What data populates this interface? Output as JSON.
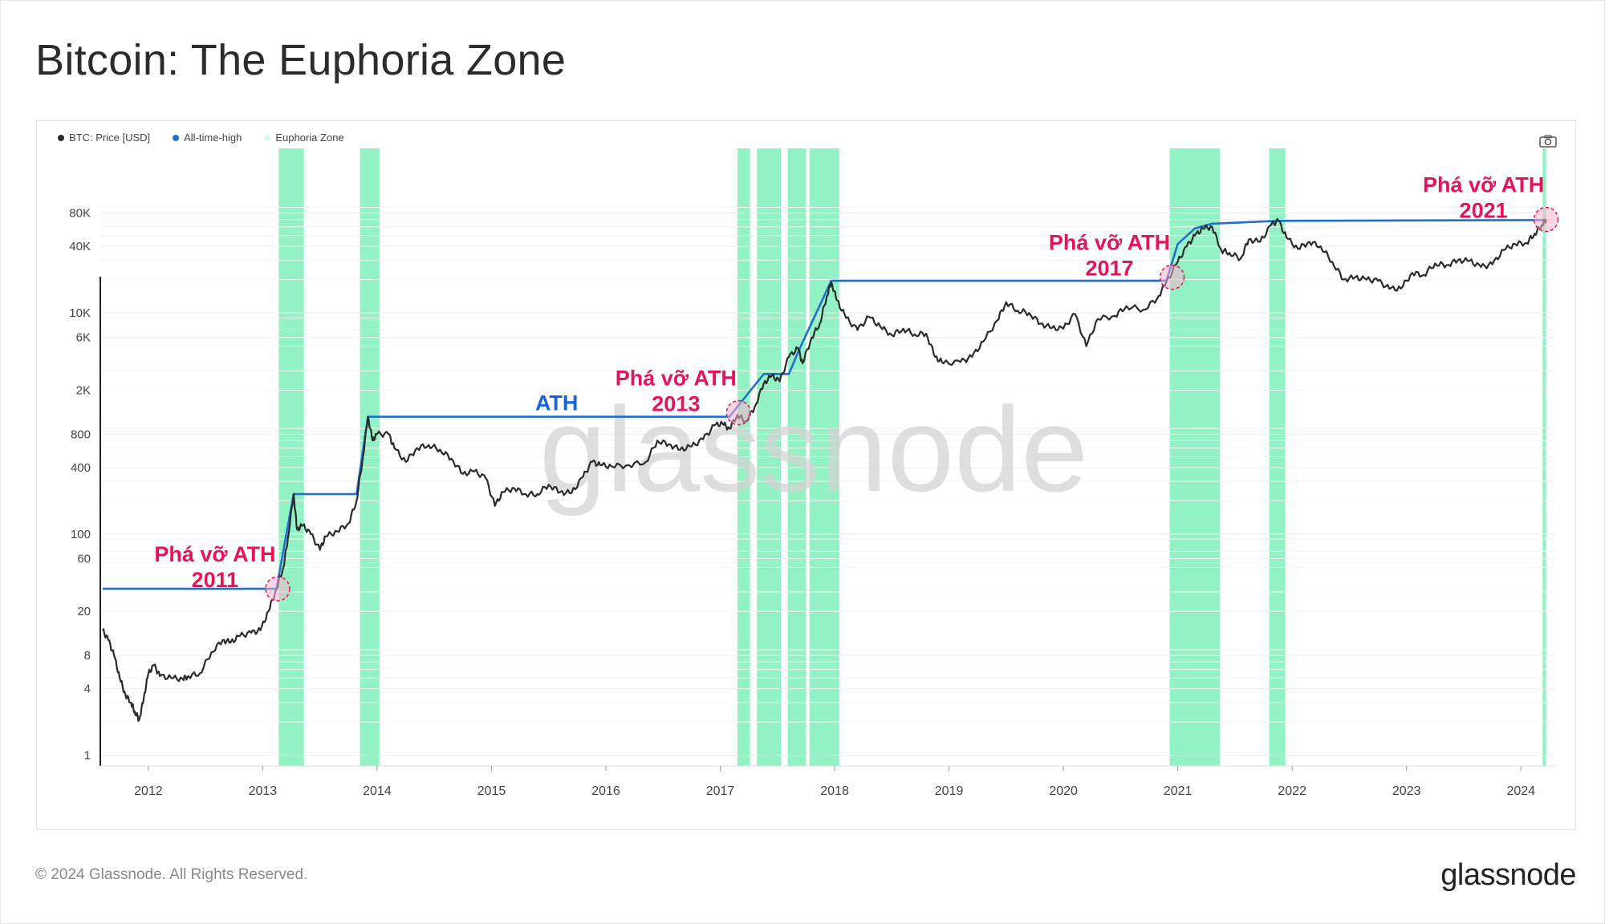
{
  "title": "Bitcoin: The Euphoria Zone",
  "legend": {
    "price": "BTC: Price [USD]",
    "ath": "All-time-high",
    "euphoria": "Euphoria Zone"
  },
  "colors": {
    "price": "#2b2b2b",
    "ath": "#1f6fd1",
    "euphoria": "#7ff0b8",
    "annotation": "#e8125c",
    "ath_label": "#1565e0"
  },
  "footer": {
    "copyright": "© 2024 Glassnode. All Rights Reserved.",
    "logo": "glassnode"
  },
  "watermark": "glassnode",
  "chart_data": {
    "type": "line",
    "title": "Bitcoin: The Euphoria Zone",
    "xlabel": "",
    "ylabel": "",
    "y_scale": "log",
    "xlim": [
      2011.58,
      2024.3
    ],
    "ylim": [
      0.8,
      220000
    ],
    "x_ticks": [
      2012,
      2013,
      2014,
      2015,
      2016,
      2017,
      2018,
      2019,
      2020,
      2021,
      2022,
      2023,
      2024
    ],
    "x_tick_labels": [
      "2012",
      "2013",
      "2014",
      "2015",
      "2016",
      "2017",
      "2018",
      "2019",
      "2020",
      "2021",
      "2022",
      "2023",
      "2024"
    ],
    "y_ticks": [
      1,
      4,
      8,
      20,
      60,
      100,
      400,
      800,
      2000,
      6000,
      10000,
      40000,
      80000
    ],
    "y_tick_labels": [
      "1",
      "4",
      "8",
      "20",
      "60",
      "100",
      "400",
      "800",
      "2K",
      "6K",
      "10K",
      "40K",
      "80K"
    ],
    "series": [
      {
        "name": "BTC: Price [USD]",
        "points": [
          [
            2011.6,
            13.5
          ],
          [
            2011.65,
            11
          ],
          [
            2011.7,
            8
          ],
          [
            2011.75,
            5
          ],
          [
            2011.8,
            3.5
          ],
          [
            2011.85,
            3
          ],
          [
            2011.88,
            2.5
          ],
          [
            2011.92,
            2.1
          ],
          [
            2011.96,
            3.3
          ],
          [
            2012.0,
            5.5
          ],
          [
            2012.05,
            6.5
          ],
          [
            2012.1,
            5.2
          ],
          [
            2012.2,
            5
          ],
          [
            2012.3,
            4.9
          ],
          [
            2012.35,
            5.2
          ],
          [
            2012.45,
            5.5
          ],
          [
            2012.55,
            8.5
          ],
          [
            2012.65,
            11
          ],
          [
            2012.72,
            10.5
          ],
          [
            2012.8,
            12
          ],
          [
            2012.9,
            12.8
          ],
          [
            2012.98,
            13.5
          ],
          [
            2013.05,
            20
          ],
          [
            2013.12,
            32
          ],
          [
            2013.18,
            50
          ],
          [
            2013.22,
            92
          ],
          [
            2013.27,
            230
          ],
          [
            2013.3,
            110
          ],
          [
            2013.35,
            120
          ],
          [
            2013.42,
            100
          ],
          [
            2013.5,
            72
          ],
          [
            2013.55,
            95
          ],
          [
            2013.65,
            106
          ],
          [
            2013.75,
            125
          ],
          [
            2013.82,
            200
          ],
          [
            2013.87,
            450
          ],
          [
            2013.92,
            1150
          ],
          [
            2013.96,
            700
          ],
          [
            2014.0,
            800
          ],
          [
            2014.1,
            800
          ],
          [
            2014.15,
            600
          ],
          [
            2014.25,
            450
          ],
          [
            2014.35,
            600
          ],
          [
            2014.45,
            640
          ],
          [
            2014.55,
            580
          ],
          [
            2014.65,
            480
          ],
          [
            2014.75,
            350
          ],
          [
            2014.85,
            370
          ],
          [
            2014.95,
            320
          ],
          [
            2015.03,
            180
          ],
          [
            2015.1,
            240
          ],
          [
            2015.2,
            260
          ],
          [
            2015.3,
            230
          ],
          [
            2015.4,
            230
          ],
          [
            2015.5,
            280
          ],
          [
            2015.6,
            240
          ],
          [
            2015.7,
            235
          ],
          [
            2015.8,
            330
          ],
          [
            2015.88,
            450
          ],
          [
            2015.95,
            420
          ],
          [
            2016.05,
            410
          ],
          [
            2016.2,
            420
          ],
          [
            2016.35,
            450
          ],
          [
            2016.45,
            700
          ],
          [
            2016.55,
            650
          ],
          [
            2016.65,
            580
          ],
          [
            2016.75,
            620
          ],
          [
            2016.85,
            720
          ],
          [
            2016.95,
            960
          ],
          [
            2017.02,
            1000
          ],
          [
            2017.08,
            900
          ],
          [
            2017.15,
            1200
          ],
          [
            2017.22,
            1050
          ],
          [
            2017.3,
            1400
          ],
          [
            2017.38,
            2300
          ],
          [
            2017.45,
            2700
          ],
          [
            2017.52,
            2400
          ],
          [
            2017.6,
            4000
          ],
          [
            2017.68,
            4800
          ],
          [
            2017.72,
            3500
          ],
          [
            2017.8,
            6000
          ],
          [
            2017.87,
            8000
          ],
          [
            2017.93,
            14000
          ],
          [
            2017.97,
            19000
          ],
          [
            2018.02,
            13000
          ],
          [
            2018.1,
            9000
          ],
          [
            2018.2,
            7000
          ],
          [
            2018.3,
            9200
          ],
          [
            2018.4,
            7500
          ],
          [
            2018.5,
            6300
          ],
          [
            2018.6,
            7200
          ],
          [
            2018.7,
            6400
          ],
          [
            2018.8,
            6500
          ],
          [
            2018.88,
            4000
          ],
          [
            2018.95,
            3500
          ],
          [
            2019.1,
            3600
          ],
          [
            2019.2,
            4000
          ],
          [
            2019.3,
            5500
          ],
          [
            2019.42,
            8500
          ],
          [
            2019.5,
            12500
          ],
          [
            2019.6,
            10500
          ],
          [
            2019.7,
            10000
          ],
          [
            2019.8,
            8000
          ],
          [
            2019.9,
            7300
          ],
          [
            2020.0,
            7200
          ],
          [
            2020.1,
            9800
          ],
          [
            2020.2,
            5000
          ],
          [
            2020.3,
            8800
          ],
          [
            2020.45,
            9400
          ],
          [
            2020.55,
            11500
          ],
          [
            2020.7,
            10700
          ],
          [
            2020.82,
            13500
          ],
          [
            2020.9,
            19000
          ],
          [
            2021.0,
            29000
          ],
          [
            2021.08,
            40000
          ],
          [
            2021.15,
            50000
          ],
          [
            2021.22,
            58000
          ],
          [
            2021.3,
            60000
          ],
          [
            2021.38,
            37000
          ],
          [
            2021.45,
            35000
          ],
          [
            2021.55,
            31000
          ],
          [
            2021.62,
            46000
          ],
          [
            2021.72,
            44000
          ],
          [
            2021.82,
            63000
          ],
          [
            2021.88,
            68000
          ],
          [
            2021.95,
            48000
          ],
          [
            2022.05,
            38000
          ],
          [
            2022.15,
            44000
          ],
          [
            2022.25,
            40000
          ],
          [
            2022.35,
            29000
          ],
          [
            2022.45,
            20000
          ],
          [
            2022.55,
            21000
          ],
          [
            2022.65,
            20000
          ],
          [
            2022.75,
            19500
          ],
          [
            2022.85,
            16500
          ],
          [
            2022.95,
            16600
          ],
          [
            2023.05,
            23000
          ],
          [
            2023.15,
            22000
          ],
          [
            2023.25,
            28000
          ],
          [
            2023.35,
            27000
          ],
          [
            2023.45,
            30000
          ],
          [
            2023.55,
            29500
          ],
          [
            2023.65,
            26000
          ],
          [
            2023.75,
            27500
          ],
          [
            2023.85,
            37000
          ],
          [
            2023.95,
            42000
          ],
          [
            2024.05,
            43000
          ],
          [
            2024.12,
            52000
          ],
          [
            2024.18,
            62000
          ],
          [
            2024.22,
            70000
          ]
        ]
      },
      {
        "name": "All-time-high",
        "points": [
          [
            2011.6,
            32
          ],
          [
            2013.12,
            32
          ],
          [
            2013.27,
            230
          ],
          [
            2013.82,
            230
          ],
          [
            2013.92,
            1150
          ],
          [
            2017.08,
            1150
          ],
          [
            2017.38,
            2800
          ],
          [
            2017.6,
            2800
          ],
          [
            2017.7,
            4900
          ],
          [
            2017.97,
            19500
          ],
          [
            2020.9,
            19500
          ],
          [
            2021.0,
            42000
          ],
          [
            2021.15,
            58000
          ],
          [
            2021.3,
            64000
          ],
          [
            2021.88,
            68000
          ],
          [
            2024.22,
            69000
          ]
        ]
      }
    ],
    "euphoria_zones": [
      [
        2013.14,
        2013.36
      ],
      [
        2013.85,
        2014.02
      ],
      [
        2017.15,
        2017.26
      ],
      [
        2017.32,
        2017.53
      ],
      [
        2017.59,
        2017.75
      ],
      [
        2017.78,
        2018.04
      ],
      [
        2020.93,
        2021.37
      ],
      [
        2021.8,
        2021.94
      ],
      [
        2024.19,
        2024.22
      ]
    ],
    "annotations": [
      {
        "label_1": "Phá vỡ ATH",
        "label_2": "2011",
        "x": 2013.13,
        "y": 32
      },
      {
        "label_1": "Phá vỡ ATH",
        "label_2": "2013",
        "x": 2017.16,
        "y": 1250
      },
      {
        "label_1": "Phá vỡ ATH",
        "label_2": "2017",
        "x": 2020.95,
        "y": 21000
      },
      {
        "label_1": "Phá vỡ ATH",
        "label_2": "2021",
        "x": 2024.22,
        "y": 70000
      }
    ],
    "ath_label": "ATH"
  }
}
